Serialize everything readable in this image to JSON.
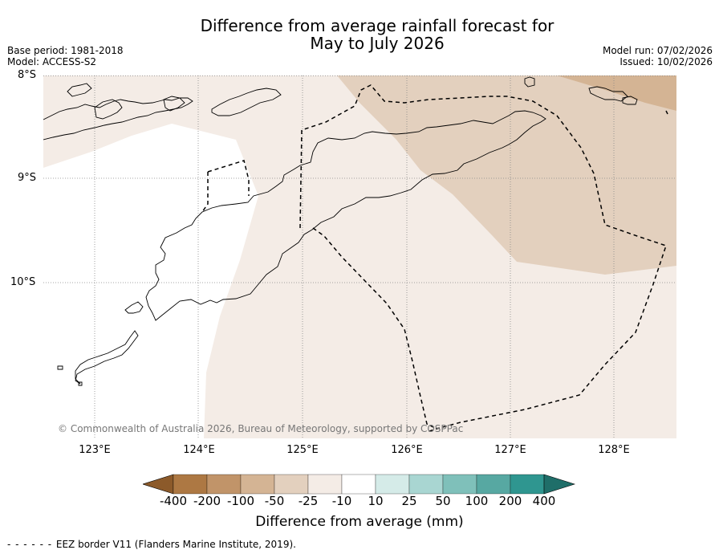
{
  "title": {
    "line1": "Difference from average rainfall forecast for",
    "line2": "May to July 2026"
  },
  "meta": {
    "base_period": "Base period: 1981-2018",
    "model": "Model: ACCESS-S2",
    "model_run": "Model run: 07/02/2026",
    "issued": "Issued: 10/02/2026"
  },
  "map": {
    "lat_labels": [
      "8°S",
      "9°S",
      "10°S"
    ],
    "lon_labels": [
      "123°E",
      "124°E",
      "125°E",
      "126°E",
      "127°E",
      "128°E"
    ],
    "copyright": "© Commonwealth of Australia 2026, Bureau of Meteorology, supported by COSPPac"
  },
  "colorbar": {
    "ticks": [
      "-400",
      "-200",
      "-100",
      "-50",
      "-25",
      "-10",
      "10",
      "25",
      "50",
      "100",
      "200",
      "400"
    ],
    "colors": [
      "#8c5a2a",
      "#ad7843",
      "#c19469",
      "#d4b494",
      "#e3d0be",
      "#f4ece6",
      "#ffffff",
      "#d5ebe8",
      "#a9d6d2",
      "#7fc0ba",
      "#57a8a2",
      "#2f9690",
      "#1f6e69"
    ],
    "label": "Difference from average (mm)"
  },
  "legend": {
    "eez_text": "EEZ border V11 (Flanders Marine Institute, 2019)."
  }
}
